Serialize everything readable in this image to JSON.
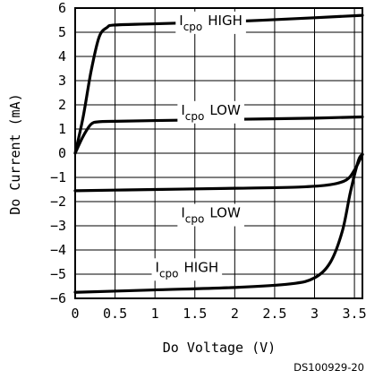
{
  "chart_data": {
    "type": "line",
    "xlabel": "Do Voltage (V)",
    "ylabel": "Do Current (mA)",
    "xlim": [
      0,
      3.6
    ],
    "ylim": [
      -6,
      6
    ],
    "x_ticks": [
      "0",
      "0.5",
      "1",
      "1.5",
      "2",
      "2.5",
      "3",
      "3.5"
    ],
    "y_ticks": [
      "6",
      "5",
      "4",
      "3",
      "2",
      "1",
      "0",
      "−1",
      "−2",
      "−3",
      "−4",
      "−5",
      "−6"
    ],
    "grid": true,
    "series": [
      {
        "name": "Icpo HIGH",
        "label_main": "I",
        "label_sub": "cpo",
        "label_rest": "HIGH",
        "points": [
          [
            0,
            0
          ],
          [
            0.1,
            1.5
          ],
          [
            0.2,
            3.4
          ],
          [
            0.3,
            4.8
          ],
          [
            0.4,
            5.2
          ],
          [
            0.5,
            5.3
          ],
          [
            1,
            5.35
          ],
          [
            2,
            5.45
          ],
          [
            3,
            5.6
          ],
          [
            3.6,
            5.7
          ]
        ]
      },
      {
        "name": "Icpo LOW",
        "label_main": "I",
        "label_sub": "cpo",
        "label_rest": "LOW",
        "points": [
          [
            0,
            0
          ],
          [
            0.1,
            0.7
          ],
          [
            0.2,
            1.2
          ],
          [
            0.3,
            1.3
          ],
          [
            0.5,
            1.32
          ],
          [
            1,
            1.35
          ],
          [
            2,
            1.4
          ],
          [
            3,
            1.45
          ],
          [
            3.6,
            1.5
          ]
        ]
      },
      {
        "name": "Icpo LOW",
        "label_main": "I",
        "label_sub": "cpo",
        "label_rest": "LOW",
        "points": [
          [
            0,
            -1.55
          ],
          [
            1,
            -1.5
          ],
          [
            2,
            -1.45
          ],
          [
            2.8,
            -1.4
          ],
          [
            3.2,
            -1.3
          ],
          [
            3.4,
            -1.1
          ],
          [
            3.5,
            -0.7
          ],
          [
            3.6,
            -0.05
          ]
        ]
      },
      {
        "name": "Icpo HIGH",
        "label_main": "I",
        "label_sub": "cpo",
        "label_rest": "HIGH",
        "points": [
          [
            0,
            -5.75
          ],
          [
            1,
            -5.65
          ],
          [
            2,
            -5.55
          ],
          [
            2.7,
            -5.4
          ],
          [
            3,
            -5.15
          ],
          [
            3.2,
            -4.5
          ],
          [
            3.35,
            -3.2
          ],
          [
            3.45,
            -1.6
          ],
          [
            3.55,
            -0.3
          ],
          [
            3.6,
            -0.05
          ]
        ]
      }
    ],
    "series_label_values": [
      {
        "x": 1.7,
        "y": 5.3
      },
      {
        "x": 1.7,
        "y": 1.6
      },
      {
        "x": 1.7,
        "y": -2.65
      },
      {
        "x": 1.4,
        "y": -4.9
      }
    ]
  },
  "figure_code": "DS100929-20"
}
